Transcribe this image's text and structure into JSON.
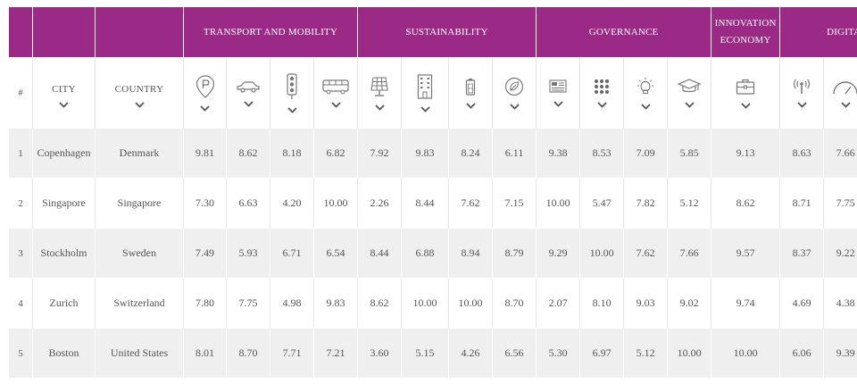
{
  "groups": {
    "transport": "TRANSPORT AND MOBILITY",
    "sustainability": "SUSTAINABILITY",
    "governance": "GOVERNANCE",
    "innovation_line1": "INNOVATION",
    "innovation_line2": "ECONOMY",
    "digital": "DIGITAL"
  },
  "columns": {
    "rank": "#",
    "city": "CITY",
    "country": "COUNTRY"
  },
  "icons": [
    "parking-icon",
    "car-icon",
    "traffic-light-icon",
    "bus-icon",
    "solar-panel-icon",
    "building-icon",
    "battery-icon",
    "leaf-icon",
    "news-icon",
    "grid-dots-icon",
    "lightbulb-icon",
    "graduation-cap-icon",
    "briefcase-icon",
    "antenna-icon",
    "gauge-icon"
  ],
  "accent_color": "#9a2a86",
  "rows": [
    {
      "rank": "1",
      "city": "Copenhagen",
      "country": "Denmark",
      "v": [
        "9.81",
        "8.62",
        "8.18",
        "6.82",
        "7.92",
        "9.83",
        "8.24",
        "6.11",
        "9.38",
        "8.53",
        "7.09",
        "5.85",
        "9.13",
        "8.63",
        "7.66"
      ]
    },
    {
      "rank": "2",
      "city": "Singapore",
      "country": "Singapore",
      "v": [
        "7.30",
        "6.63",
        "4.20",
        "10.00",
        "2.26",
        "8.44",
        "7.62",
        "7.15",
        "10.00",
        "5.47",
        "7.82",
        "5.12",
        "8.62",
        "8.71",
        "7.75"
      ]
    },
    {
      "rank": "3",
      "city": "Stockholm",
      "country": "Sweden",
      "v": [
        "7.49",
        "5.93",
        "6.71",
        "6.54",
        "8.44",
        "6.88",
        "8.94",
        "8.79",
        "9.29",
        "10.00",
        "7.62",
        "7.66",
        "9.57",
        "8.37",
        "9.22"
      ]
    },
    {
      "rank": "4",
      "city": "Zurich",
      "country": "Switzerland",
      "v": [
        "7.80",
        "7.75",
        "4.98",
        "9.83",
        "8.62",
        "10.00",
        "10.00",
        "8.70",
        "2.07",
        "8.10",
        "9.03",
        "9.02",
        "9.74",
        "4.69",
        "4.38"
      ]
    },
    {
      "rank": "5",
      "city": "Boston",
      "country": "United States",
      "v": [
        "8.01",
        "8.70",
        "7.71",
        "7.21",
        "3.60",
        "5.15",
        "4.26",
        "6.56",
        "5.30",
        "6.97",
        "5.12",
        "10.00",
        "10.00",
        "6.06",
        "9.39"
      ]
    }
  ]
}
